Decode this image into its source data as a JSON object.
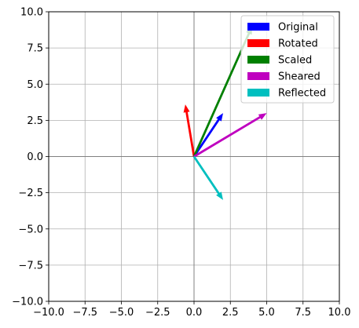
{
  "chart_data": {
    "type": "quiver",
    "title": "",
    "xlabel": "",
    "ylabel": "",
    "xlim": [
      -10,
      10
    ],
    "ylim": [
      -10,
      10
    ],
    "xticks": [
      -10,
      -7.5,
      -5,
      -2.5,
      0,
      2.5,
      5,
      7.5,
      10
    ],
    "yticks": [
      -10,
      -7.5,
      -5,
      -2.5,
      0,
      2.5,
      5,
      7.5,
      10
    ],
    "xtick_labels": [
      "−10.0",
      "−7.5",
      "−5.0",
      "−2.5",
      "0.0",
      "2.5",
      "5.0",
      "7.5",
      "10.0"
    ],
    "ytick_labels": [
      "−10.0",
      "−7.5",
      "−5.0",
      "−2.5",
      "0.0",
      "2.5",
      "5.0",
      "7.5",
      "10.0"
    ],
    "grid": true,
    "aspect": "equal",
    "legend_position": "upper right",
    "series": [
      {
        "name": "Original",
        "origin": [
          0,
          0
        ],
        "vector": [
          2,
          3
        ],
        "color": "#0000ff"
      },
      {
        "name": "Rotated",
        "origin": [
          0,
          0
        ],
        "vector": [
          -0.6,
          3.6
        ],
        "color": "#ff0000"
      },
      {
        "name": "Scaled",
        "origin": [
          0,
          0
        ],
        "vector": [
          4,
          9
        ],
        "color": "#008000"
      },
      {
        "name": "Sheared",
        "origin": [
          0,
          0
        ],
        "vector": [
          5,
          3
        ],
        "color": "#bf00bf"
      },
      {
        "name": "Reflected",
        "origin": [
          0,
          0
        ],
        "vector": [
          2,
          -3
        ],
        "color": "#00bfbf"
      }
    ]
  }
}
